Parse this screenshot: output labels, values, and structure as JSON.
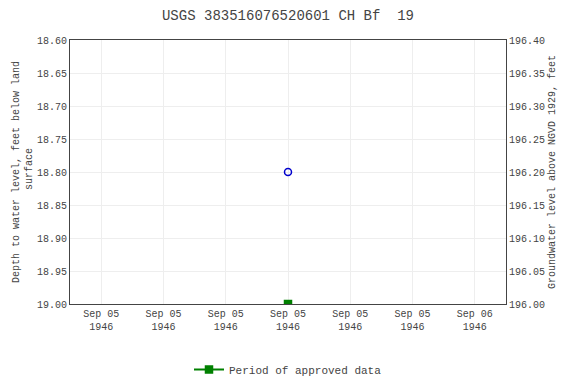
{
  "chart_data": {
    "type": "scatter",
    "title": "USGS 383516076520601 CH Bf  19",
    "categories": [
      "Sep 05\n1946",
      "Sep 05\n1946",
      "Sep 05\n1946",
      "Sep 05\n1946",
      "Sep 05\n1946",
      "Sep 05\n1946",
      "Sep 06\n1946"
    ],
    "series": [
      {
        "color": "#0000cc",
        "marker": "circle-open",
        "values": [
          null,
          null,
          null,
          18.8,
          null,
          null,
          null
        ]
      },
      {
        "name": "Period of approved data",
        "color": "#008000",
        "marker": "square",
        "line_style": "solid",
        "values": [
          null,
          null,
          null,
          19.0,
          null,
          null,
          null
        ]
      }
    ],
    "ylabel": "Depth to water level, feet below land\n surface",
    "y2label": "Groundwater level above NGVD 1929, feet",
    "ylim": [
      19.0,
      18.6
    ],
    "yticks": [
      {
        "value": 18.6,
        "label": "18.60"
      },
      {
        "value": 18.65,
        "label": "18.65"
      },
      {
        "value": 18.7,
        "label": "18.70"
      },
      {
        "value": 18.75,
        "label": "18.75"
      },
      {
        "value": 18.8,
        "label": "18.80"
      },
      {
        "value": 18.85,
        "label": "18.85"
      },
      {
        "value": 18.9,
        "label": "18.90"
      },
      {
        "value": 18.95,
        "label": "18.95"
      },
      {
        "value": 19.0,
        "label": "19.00"
      }
    ],
    "y2lim": [
      196.0,
      196.4
    ],
    "y2ticks": [
      {
        "value": 196.4,
        "label": "196.40"
      },
      {
        "value": 196.35,
        "label": "196.35"
      },
      {
        "value": 196.3,
        "label": "196.30"
      },
      {
        "value": 196.25,
        "label": "196.25"
      },
      {
        "value": 196.2,
        "label": "196.20"
      },
      {
        "value": 196.15,
        "label": "196.15"
      },
      {
        "value": 196.1,
        "label": "196.10"
      },
      {
        "value": 196.05,
        "label": "196.05"
      },
      {
        "value": 196.0,
        "label": "196.00"
      }
    ],
    "grid": true,
    "legend": "bottom"
  }
}
